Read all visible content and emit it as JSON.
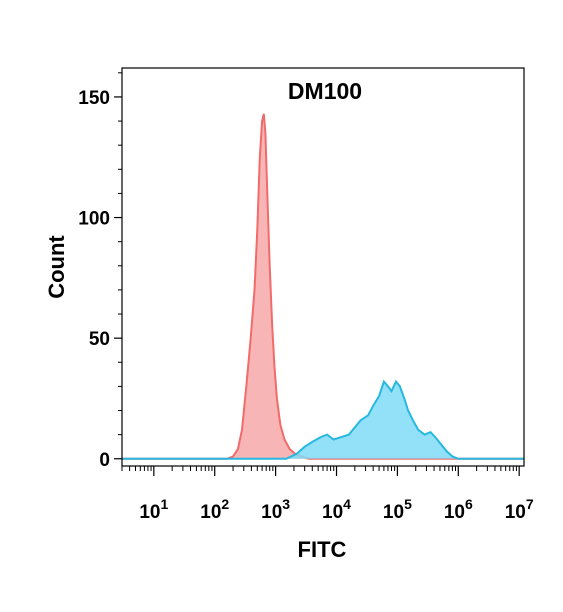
{
  "chart_data": {
    "type": "area",
    "title": "DM100",
    "xlabel": "FITC",
    "ylabel": "Count",
    "x_scale": "log",
    "xlim": [
      3,
      12000000
    ],
    "ylim": [
      -3,
      162
    ],
    "y_ticks": [
      0,
      50,
      100,
      150
    ],
    "x_tick_labels": [
      {
        "base": "10",
        "exp": "1",
        "value": 10
      },
      {
        "base": "10",
        "exp": "2",
        "value": 100
      },
      {
        "base": "10",
        "exp": "3",
        "value": 1000
      },
      {
        "base": "10",
        "exp": "4",
        "value": 10000
      },
      {
        "base": "10",
        "exp": "5",
        "value": 100000
      },
      {
        "base": "10",
        "exp": "6",
        "value": 1000000
      },
      {
        "base": "10",
        "exp": "7",
        "value": 10000000
      }
    ],
    "grid": false,
    "legend": "none",
    "series": [
      {
        "color": "#f26b6b",
        "fill": "#f7a8a8",
        "points": [
          [
            3,
            0
          ],
          [
            100,
            0
          ],
          [
            160,
            0
          ],
          [
            200,
            1
          ],
          [
            240,
            4
          ],
          [
            280,
            12
          ],
          [
            330,
            30
          ],
          [
            390,
            50
          ],
          [
            450,
            70
          ],
          [
            500,
            95
          ],
          [
            550,
            125
          ],
          [
            600,
            140
          ],
          [
            640,
            143
          ],
          [
            680,
            135
          ],
          [
            730,
            110
          ],
          [
            800,
            80
          ],
          [
            880,
            55
          ],
          [
            960,
            38
          ],
          [
            1050,
            25
          ],
          [
            1200,
            14
          ],
          [
            1400,
            8
          ],
          [
            1700,
            4
          ],
          [
            2100,
            2
          ],
          [
            2700,
            1
          ],
          [
            3500,
            0
          ],
          [
            12000000,
            0
          ]
        ]
      },
      {
        "color": "#27b8e0",
        "fill": "#7fdcf7",
        "points": [
          [
            3,
            0
          ],
          [
            1500,
            0
          ],
          [
            2200,
            2
          ],
          [
            3000,
            5
          ],
          [
            4000,
            7
          ],
          [
            5500,
            9
          ],
          [
            7000,
            10
          ],
          [
            9000,
            8
          ],
          [
            12000,
            9
          ],
          [
            16000,
            10
          ],
          [
            20000,
            13
          ],
          [
            25000,
            16
          ],
          [
            33000,
            18
          ],
          [
            40000,
            22
          ],
          [
            50000,
            26
          ],
          [
            60000,
            32
          ],
          [
            70000,
            30
          ],
          [
            80000,
            28
          ],
          [
            95000,
            32
          ],
          [
            110000,
            30
          ],
          [
            130000,
            25
          ],
          [
            150000,
            20
          ],
          [
            180000,
            16
          ],
          [
            220000,
            12
          ],
          [
            280000,
            10
          ],
          [
            350000,
            11
          ],
          [
            420000,
            9
          ],
          [
            520000,
            6
          ],
          [
            650000,
            3
          ],
          [
            800000,
            1
          ],
          [
            1000000,
            0
          ],
          [
            12000000,
            0
          ]
        ]
      }
    ]
  }
}
